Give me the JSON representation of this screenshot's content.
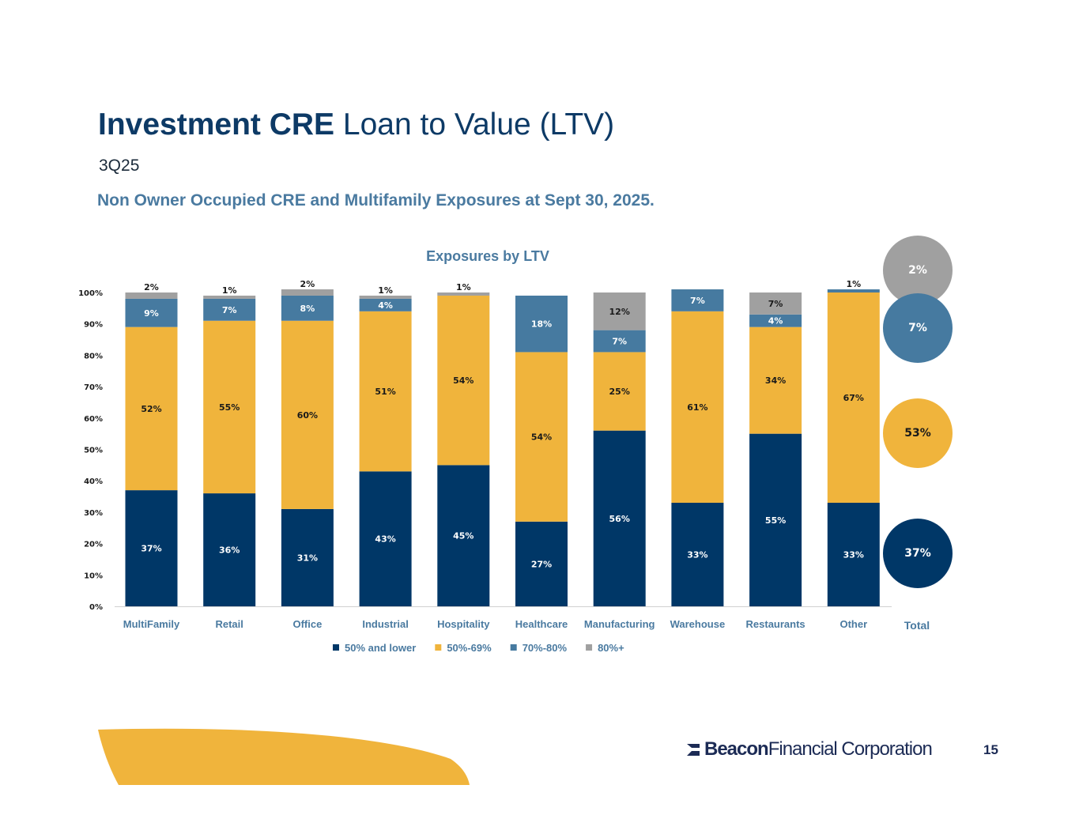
{
  "header": {
    "title_bold": "Investment CRE",
    "title_rest": "Loan to Value (LTV)",
    "period": "3Q25",
    "subtitle": "Non Owner Occupied CRE and Multifamily Exposures at Sept 30, 2025."
  },
  "chart_data": {
    "type": "bar",
    "stacked": true,
    "title": "Exposures by LTV",
    "categories": [
      "MultiFamily",
      "Retail",
      "Office",
      "Industrial",
      "Hospitality",
      "Healthcare",
      "Manufacturing",
      "Warehouse",
      "Restaurants",
      "Other"
    ],
    "series": [
      {
        "name": "50% and lower",
        "color": "#003767",
        "values": [
          37,
          36,
          31,
          43,
          45,
          27,
          56,
          33,
          55,
          33
        ]
      },
      {
        "name": "50%-69%",
        "color": "#f0b43c",
        "values": [
          52,
          55,
          60,
          51,
          54,
          54,
          25,
          61,
          34,
          67
        ]
      },
      {
        "name": "70%-80%",
        "color": "#467aa0",
        "values": [
          9,
          7,
          8,
          4,
          0,
          18,
          7,
          7,
          4,
          1
        ]
      },
      {
        "name": "80%+",
        "color": "#a0a0a0",
        "values": [
          2,
          1,
          2,
          1,
          1,
          0,
          12,
          0,
          7,
          0
        ]
      }
    ],
    "ylim": [
      0,
      100
    ],
    "yticks": [
      "0%",
      "10%",
      "20%",
      "30%",
      "40%",
      "50%",
      "60%",
      "70%",
      "80%",
      "90%",
      "100%"
    ],
    "xlabel": "",
    "ylabel": "",
    "legend_position": "bottom"
  },
  "total": {
    "label": "Total",
    "values": [
      {
        "series": "80%+",
        "value": "2%",
        "color": "#a0a0a0"
      },
      {
        "series": "70%-80%",
        "value": "7%",
        "color": "#467aa0"
      },
      {
        "series": "50%-69%",
        "value": "53%",
        "color": "#f0b43c"
      },
      {
        "series": "50% and lower",
        "value": "37%",
        "color": "#003767"
      }
    ]
  },
  "footer": {
    "logo_bold": "Beacon",
    "logo_rest": "Financial Corporation",
    "page_number": "15"
  }
}
